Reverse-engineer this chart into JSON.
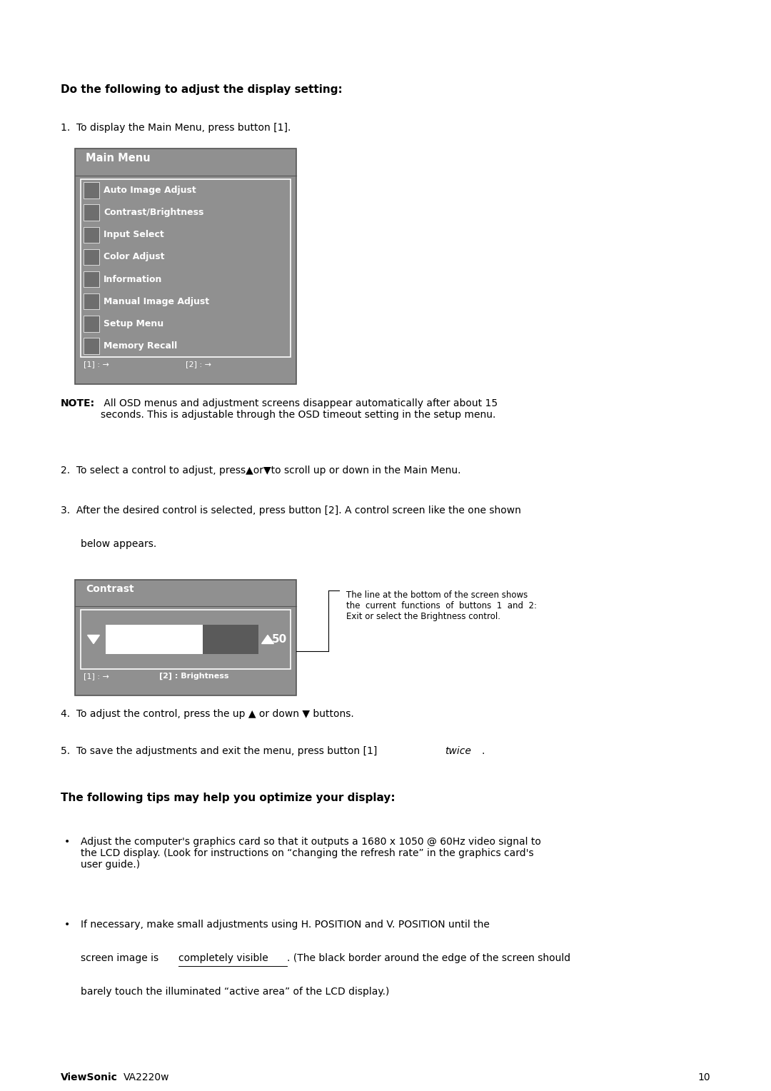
{
  "page_width": 10.8,
  "page_height": 15.28,
  "bg_color": "#ffffff",
  "text_color": "#000000",
  "gray_bg": "#909090",
  "gray_inner": "#909090",
  "heading1": "Do the following to adjust the display setting:",
  "heading2": "The following tips may help you optimize your display:",
  "step1": "To display the Main Menu, press button [1].",
  "step2_pre": "2.",
  "step2_text": "  To select a control to adjust, press▲or▼to scroll up or down in the Main Menu.",
  "step3_pre": "3.",
  "step3_text": "  After the desired control is selected, press button [2]. A control screen like the one shown\n    below appears.",
  "step4_text": "4.  To adjust the control, press the up ▲ or down ▼ buttons.",
  "step5_pre": "5.  To save the adjustments and exit the menu, press button [1] ",
  "step5_italic": "twice",
  "step5_end": ".",
  "note_bold": "NOTE:",
  "note_rest": " All OSD menus and adjustment screens disappear automatically after about 15\nseconds. This is adjustable through the OSD timeout setting in the setup menu.",
  "callout_text": "The line at the bottom of the screen shows\nthe  current  functions  of  buttons  1  and  2:\nExit or select the Brightness control.",
  "tip1": "Adjust the computer's graphics card so that it outputs a 1680 x 1050 @ 60Hz video signal to\nthe LCD display. (Look for instructions on “changing the refresh rate” in the graphics card's\nuser guide.)",
  "tip2_line1": "If necessary, make small adjustments using H. POSITION and V. POSITION until the",
  "tip2_line2_pre": "screen image is ",
  "tip2_line2_ul": "completely visible",
  "tip2_line2_post": ". (The black border around the edge of the screen should",
  "tip2_line3": "barely touch the illuminated “active area” of the LCD display.)",
  "footer_brand": "ViewSonic",
  "footer_model": "VA2220w",
  "footer_page": "10",
  "menu_header": "Main Menu",
  "menu_items": [
    "Auto Image Adjust",
    "Contrast/Brightness",
    "Input Select",
    "Color Adjust",
    "Information",
    "Manual Image Adjust",
    "Setup Menu",
    "Memory Recall"
  ],
  "contrast_header": "Contrast",
  "contrast_value": "50"
}
